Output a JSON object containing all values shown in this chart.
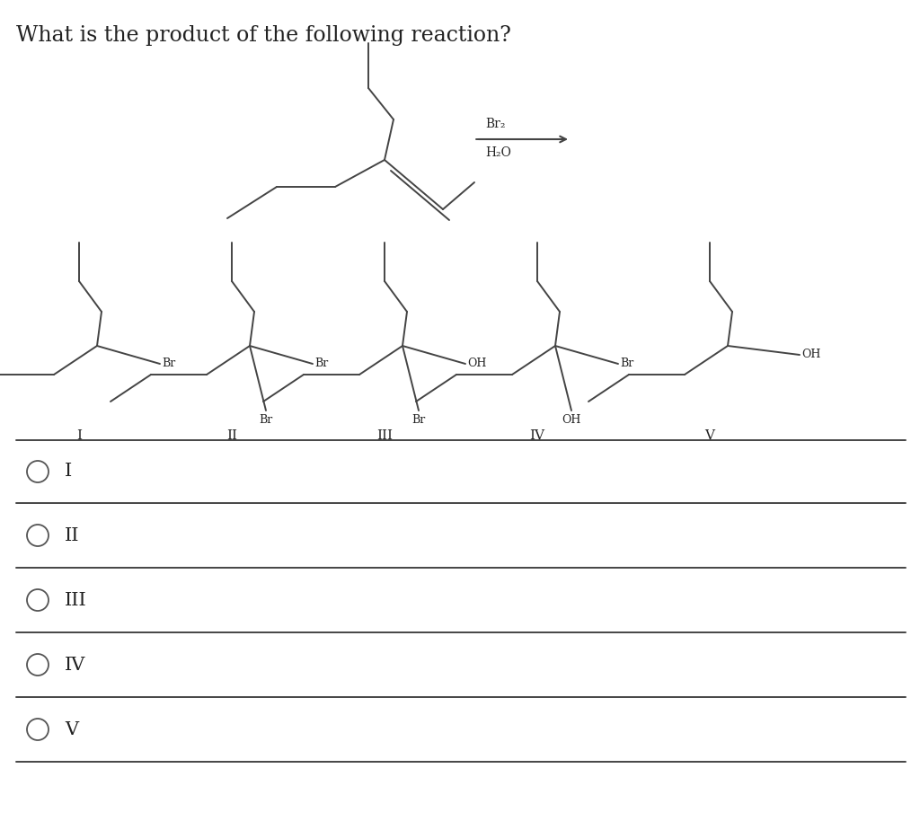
{
  "title": "What is the product of the following reaction?",
  "title_fontsize": 17,
  "bg_color": "#ffffff",
  "options": [
    "I",
    "II",
    "III",
    "IV",
    "V"
  ],
  "reagent_line1": "Br₂",
  "reagent_line2": "H₂O",
  "line_color": "#444444",
  "text_color": "#222222",
  "sep_color": "#bbbbbb",
  "radio_color": "#555555"
}
